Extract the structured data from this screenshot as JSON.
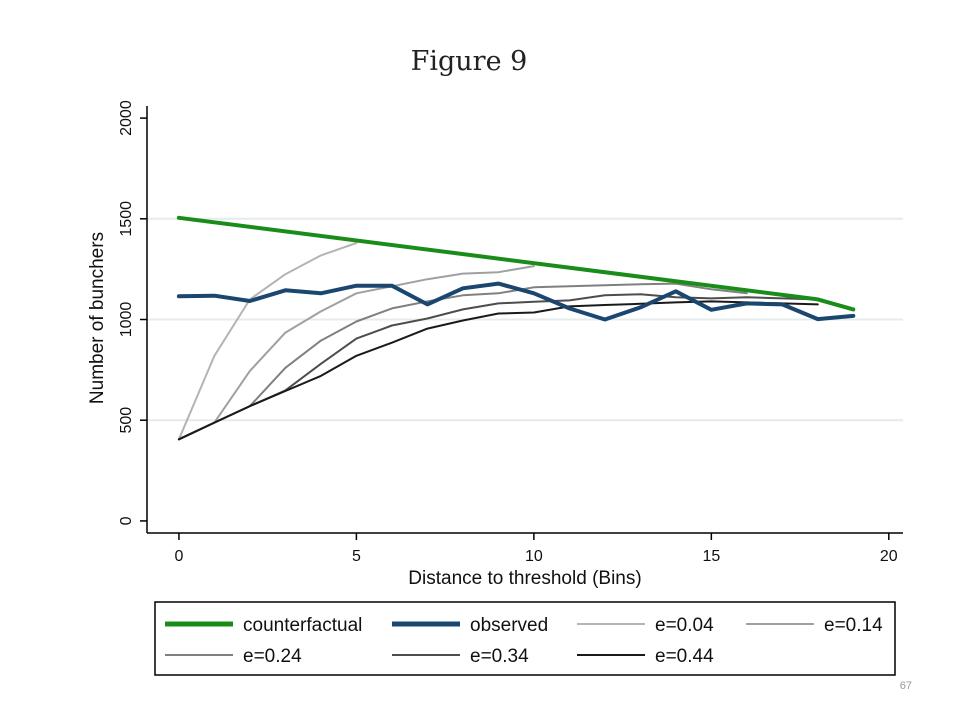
{
  "page": {
    "heading": "Figure 9",
    "page_number": "67"
  },
  "chart_data": {
    "type": "line",
    "xlabel": "Distance to threshold (Bins)",
    "ylabel": "Number of bunchers",
    "xlim": [
      -0.9,
      20.4
    ],
    "ylim": [
      -60,
      2060
    ],
    "x_ticks": [
      0,
      5,
      10,
      15,
      20
    ],
    "y_ticks": [
      0,
      500,
      1000,
      1500,
      2000
    ],
    "grid": "horizontal",
    "legend_position": "bottom",
    "series": [
      {
        "name": "counterfactual",
        "color": "#1a8c1a",
        "width": 4,
        "x": [
          0,
          18,
          19
        ],
        "y": [
          1505,
          1100,
          1050
        ]
      },
      {
        "name": "observed",
        "color": "#1a4670",
        "width": 4,
        "x": [
          0,
          1,
          2,
          3,
          4,
          5,
          6,
          7,
          8,
          9,
          10,
          11,
          12,
          13,
          14,
          15,
          16,
          17,
          18,
          19
        ],
        "y": [
          1115,
          1118,
          1092,
          1145,
          1130,
          1168,
          1168,
          1075,
          1155,
          1178,
          1130,
          1055,
          1000,
          1060,
          1140,
          1048,
          1080,
          1075,
          1002,
          1018
        ]
      },
      {
        "name": "e=0.04",
        "color": "#b4b4b4",
        "width": 2,
        "x": [
          0,
          1,
          2,
          3,
          4,
          5
        ],
        "y": [
          405,
          820,
          1100,
          1225,
          1318,
          1380
        ]
      },
      {
        "name": "e=0.14",
        "color": "#a0a0a0",
        "width": 2,
        "x": [
          0,
          1,
          2,
          3,
          4,
          5,
          6,
          7,
          8,
          9,
          10
        ],
        "y": [
          405,
          488,
          745,
          935,
          1040,
          1130,
          1165,
          1200,
          1228,
          1235,
          1265
        ]
      },
      {
        "name": "e=0.24",
        "color": "#808080",
        "width": 2,
        "x": [
          0,
          1,
          2,
          3,
          4,
          5,
          6,
          7,
          8,
          9,
          10,
          11,
          12,
          13,
          14,
          15,
          16
        ],
        "y": [
          405,
          488,
          570,
          760,
          895,
          990,
          1055,
          1090,
          1120,
          1130,
          1160,
          1165,
          1170,
          1175,
          1178,
          1150,
          1130
        ]
      },
      {
        "name": "e=0.34",
        "color": "#4d4d4d",
        "width": 2,
        "x": [
          0,
          1,
          2,
          3,
          4,
          5,
          6,
          7,
          8,
          9,
          10,
          11,
          12,
          13,
          14,
          15,
          16,
          17,
          18
        ],
        "y": [
          405,
          488,
          570,
          648,
          780,
          905,
          970,
          1005,
          1050,
          1080,
          1088,
          1095,
          1120,
          1125,
          1110,
          1105,
          1110,
          1105,
          1100
        ]
      },
      {
        "name": "e=0.44",
        "color": "#1a1a1a",
        "width": 2,
        "x": [
          0,
          1,
          2,
          3,
          4,
          5,
          6,
          7,
          8,
          9,
          10,
          11,
          12,
          13,
          14,
          15,
          16,
          17,
          18
        ],
        "y": [
          405,
          488,
          570,
          645,
          720,
          820,
          885,
          955,
          995,
          1030,
          1035,
          1065,
          1072,
          1078,
          1085,
          1090,
          1085,
          1080,
          1075
        ]
      }
    ]
  }
}
